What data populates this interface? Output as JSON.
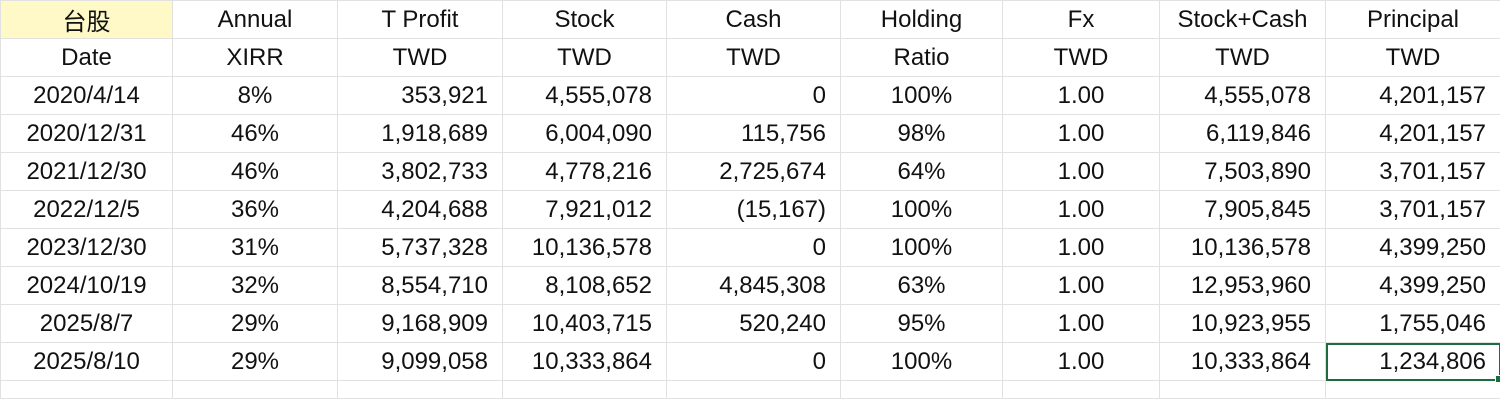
{
  "header": {
    "row1": [
      "台股",
      "Annual",
      "T Profit",
      "Stock",
      "Cash",
      "Holding",
      "Fx",
      "Stock+Cash",
      "Principal"
    ],
    "row2": [
      "Date",
      "XIRR",
      "TWD",
      "TWD",
      "TWD",
      "Ratio",
      "TWD",
      "TWD",
      "TWD"
    ]
  },
  "rows": [
    [
      "2020/4/14",
      "8%",
      "353,921",
      "4,555,078",
      "0",
      "100%",
      "1.00",
      "4,555,078",
      "4,201,157"
    ],
    [
      "2020/12/31",
      "46%",
      "1,918,689",
      "6,004,090",
      "115,756",
      "98%",
      "1.00",
      "6,119,846",
      "4,201,157"
    ],
    [
      "2021/12/30",
      "46%",
      "3,802,733",
      "4,778,216",
      "2,725,674",
      "64%",
      "1.00",
      "7,503,890",
      "3,701,157"
    ],
    [
      "2022/12/5",
      "36%",
      "4,204,688",
      "7,921,012",
      "(15,167)",
      "100%",
      "1.00",
      "7,905,845",
      "3,701,157"
    ],
    [
      "2023/12/30",
      "31%",
      "5,737,328",
      "10,136,578",
      "0",
      "100%",
      "1.00",
      "10,136,578",
      "4,399,250"
    ],
    [
      "2024/10/19",
      "32%",
      "8,554,710",
      "8,108,652",
      "4,845,308",
      "63%",
      "1.00",
      "12,953,960",
      "4,399,250"
    ],
    [
      "2025/8/7",
      "29%",
      "9,168,909",
      "10,403,715",
      "520,240",
      "95%",
      "1.00",
      "10,923,955",
      "1,755,046"
    ],
    [
      "2025/8/10",
      "29%",
      "9,099,058",
      "10,333,864",
      "0",
      "100%",
      "1.00",
      "10,333,864",
      "1,234,806"
    ]
  ],
  "highlight_color": "#fef9c6",
  "selection_color": "#1e6b3d",
  "selected_cell": {
    "row": 7,
    "col": 8
  }
}
